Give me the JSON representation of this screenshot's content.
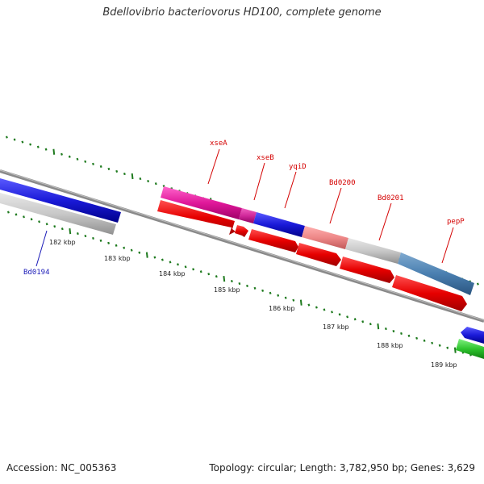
{
  "title": "Bdellovibrio bacteriovorus HD100, complete genome",
  "footer": {
    "accession": "Accession: NC_005363",
    "summary": "Topology: circular; Length: 3,782,950 bp; Genes: 3,629"
  },
  "colors": {
    "tick": "#1e7a1e",
    "backbone": "#707070",
    "xseA": "#e0189a",
    "xseB": "#d0289a",
    "yqiD": "#1a1ad8",
    "Bd0200": "#ee8888",
    "Bd0201": "#c8c8c8",
    "pepP": "#4a7fb0",
    "cds": "#e60000",
    "Bd0194": "#1a1ad8",
    "grey_gene": "#c8c8c8",
    "green_gene": "#2ec42e"
  },
  "scale": {
    "kbp_labels": [
      "182 kbp",
      "183 kbp",
      "184 kbp",
      "185 kbp",
      "186 kbp",
      "187 kbp",
      "188 kbp",
      "189 kbp"
    ]
  },
  "genes": [
    {
      "name": "xseA",
      "color": "red"
    },
    {
      "name": "xseB",
      "color": "red"
    },
    {
      "name": "yqiD",
      "color": "red"
    },
    {
      "name": "Bd0200",
      "color": "red"
    },
    {
      "name": "Bd0201",
      "color": "red"
    },
    {
      "name": "pepP",
      "color": "red"
    },
    {
      "name": "Bd0194",
      "color": "blue"
    }
  ]
}
